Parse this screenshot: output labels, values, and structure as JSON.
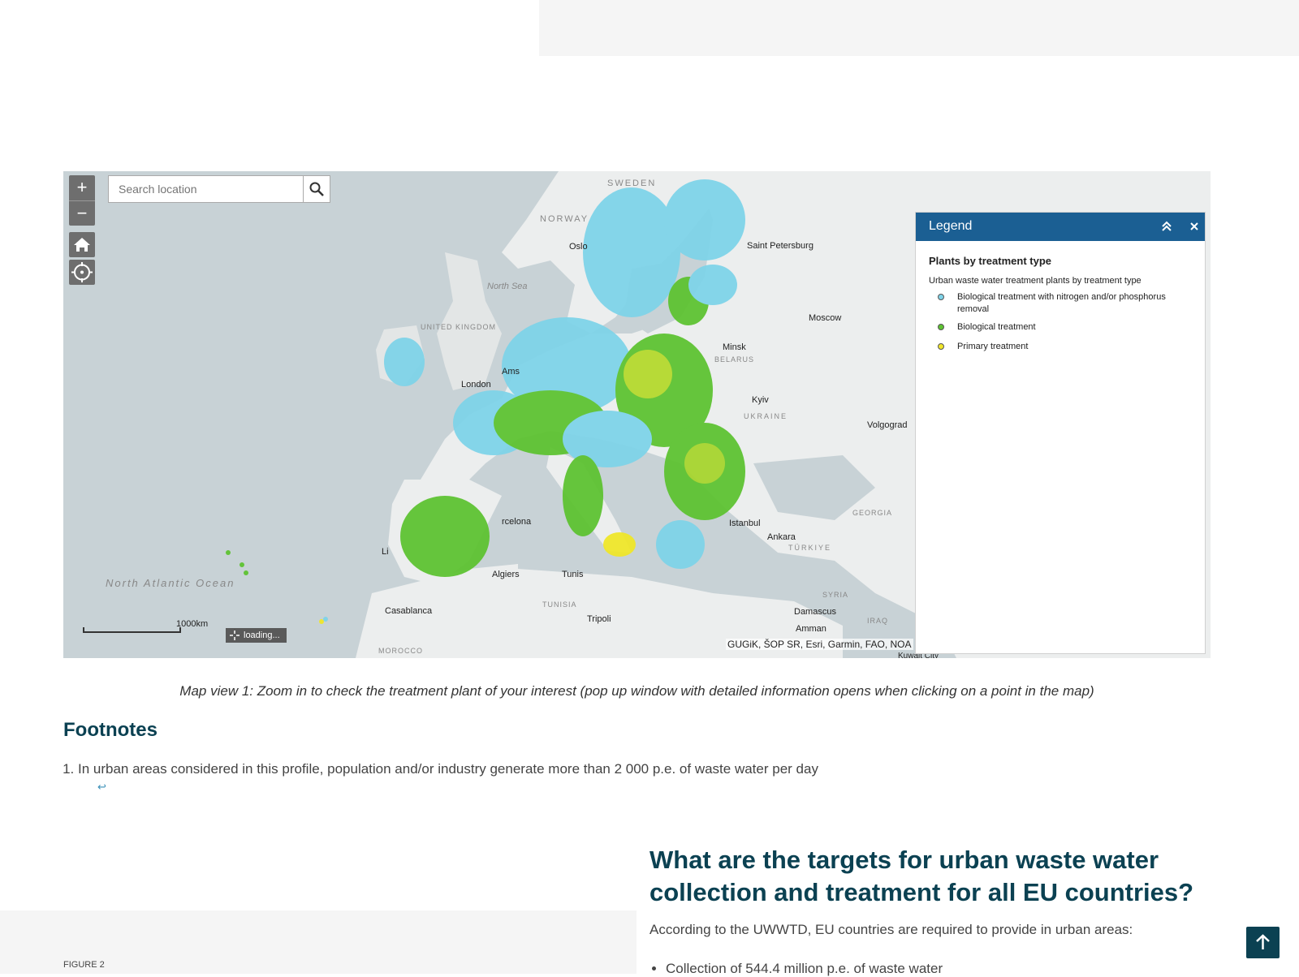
{
  "map": {
    "search_placeholder": "Search location",
    "zoom_in": "+",
    "zoom_out": "−",
    "labels": {
      "sweden": "SWEDEN",
      "norway": "NORWAY",
      "north_sea": "North Sea",
      "united_kingdom": "UNITED KINGDOM",
      "oslo": "Oslo",
      "saint_petersburg": "Saint Petersburg",
      "moscow": "Moscow",
      "minsk": "Minsk",
      "belarus": "BELARUS",
      "london": "London",
      "amsterdam": "Ams",
      "kyiv": "Kyiv",
      "ukraine": "UKRAINE",
      "volgograd": "Volgograd",
      "barcelona": "rcelona",
      "lisbon": "Li",
      "istanbul": "Istanbul",
      "ankara": "Ankara",
      "turkiye": "TÜRKIYE",
      "georgia": "GEORGIA",
      "algiers": "Algiers",
      "tunis": "Tunis",
      "tunisia": "TUNISIA",
      "casablanca": "Casablanca",
      "tripoli": "Tripoli",
      "morocco": "MOROCCO",
      "syria": "SYRIA",
      "damascus": "Damascus",
      "iraq": "IRAQ",
      "amman": "Amman",
      "kuwait_city": "Kuwait City",
      "north_atlantic": "North Atlantic Ocean"
    },
    "scale_label": "1000km",
    "loading_text": "loading...",
    "attribution": "GUGiK, ŠOP SR, Esri, Garmin, FAO, NOA"
  },
  "legend": {
    "header": "Legend",
    "title": "Plants by treatment type",
    "subtitle": "Urban waste water treatment plants by treatment type",
    "items": [
      {
        "label": "Biological treatment with nitrogen and/or phosphorus removal",
        "color": "#7fd3e8"
      },
      {
        "label": "Biological treatment",
        "color": "#5ec232"
      },
      {
        "label": "Primary treatment",
        "color": "#f0e62a"
      }
    ]
  },
  "caption": "Map view 1: Zoom in to check the treatment plant of your interest (pop up window with detailed information opens when clicking on a point in the map)",
  "footnotes": {
    "title": "Footnotes",
    "items": [
      "In urban areas considered in this profile, population and/or industry generate more than 2 000 p.e. of waste water per day"
    ],
    "backref": "↩"
  },
  "section": {
    "figure_label": "FIGURE 2",
    "heading": "What are the targets for urban waste water collection and treatment for all EU countries?",
    "intro": "According to the UWWTD, EU countries are required to provide in urban areas:",
    "bullets": [
      "Collection of 544.4 million p.e. of waste water"
    ]
  },
  "colors": {
    "accent": "#0b4152",
    "legend_header": "#1b5f93"
  }
}
